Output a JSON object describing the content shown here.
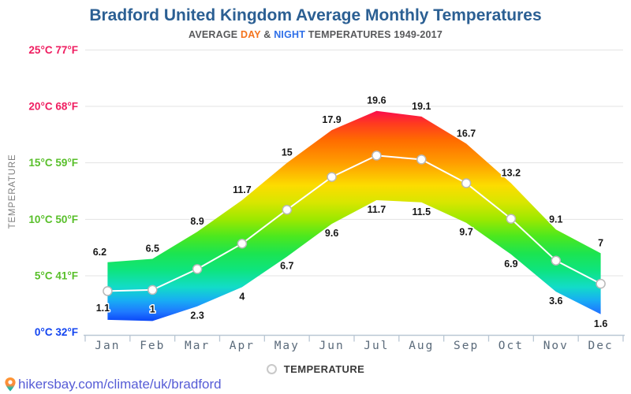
{
  "header": {
    "title": "Bradford United Kingdom Average Monthly Temperatures",
    "subtitle": {
      "prefix": "AVERAGE ",
      "day_word": "DAY",
      "separator": " & ",
      "night_word": "NIGHT",
      "suffix": " TEMPERATURES 1949-2017"
    }
  },
  "legend": {
    "label": "TEMPERATURE"
  },
  "footer": {
    "link_text": "hikersbay.com/climate/uk/bradford",
    "link_color": "#565cd6"
  },
  "chart_data": {
    "type": "area",
    "title": "Bradford United Kingdom Average Monthly Temperatures",
    "subtitle": "AVERAGE DAY & NIGHT TEMPERATURES 1949-2017",
    "categories": [
      "Jan",
      "Feb",
      "Mar",
      "Apr",
      "May",
      "Jun",
      "Jul",
      "Aug",
      "Sep",
      "Oct",
      "Nov",
      "Dec"
    ],
    "series": [
      {
        "name": "DAY",
        "values": [
          6.2,
          6.5,
          8.9,
          11.7,
          15,
          17.9,
          19.6,
          19.1,
          16.7,
          13.2,
          9.1,
          7
        ],
        "labels": [
          "6.2",
          "6.5",
          "8.9",
          "11.7",
          "15",
          "17.9",
          "19.6",
          "19.1",
          "16.7",
          "13.2",
          "9.1",
          "7"
        ]
      },
      {
        "name": "NIGHT",
        "values": [
          1.1,
          1,
          2.3,
          4,
          6.7,
          9.6,
          11.7,
          11.5,
          9.7,
          6.9,
          3.6,
          1.6
        ],
        "labels": [
          "1.1",
          "1",
          "2.3",
          "4",
          "6.7",
          "9.6",
          "11.7",
          "11.5",
          "9.7",
          "6.9",
          "3.6",
          "1.6"
        ]
      }
    ],
    "midline": {
      "name": "TEMPERATURE",
      "description": "white line with circular markers at midpoint of day and night values"
    },
    "ylabel": "TEMPERATURE",
    "ylim": [
      0,
      25
    ],
    "grid": true,
    "yticks": [
      {
        "value": 0,
        "c": "0°C",
        "f": "32°F",
        "color": "#1244f0"
      },
      {
        "value": 5,
        "c": "5°C",
        "f": "41°F",
        "color": "#58bf2a"
      },
      {
        "value": 10,
        "c": "10°C",
        "f": "50°F",
        "color": "#58bf2a"
      },
      {
        "value": 15,
        "c": "15°C",
        "f": "59°F",
        "color": "#58bf2a"
      },
      {
        "value": 20,
        "c": "20°C",
        "f": "68°F",
        "color": "#ef1d60"
      },
      {
        "value": 25,
        "c": "25°C",
        "f": "77°F",
        "color": "#ef1d60"
      }
    ],
    "color_scale": [
      {
        "temp": 25,
        "color": "#ef0a4e"
      },
      {
        "temp": 19.6,
        "color": "#fa0c4c"
      },
      {
        "temp": 18.5,
        "color": "#ff3a20"
      },
      {
        "temp": 17,
        "color": "#ff6c00"
      },
      {
        "temp": 15,
        "color": "#ff9d00"
      },
      {
        "temp": 13,
        "color": "#fcdc00"
      },
      {
        "temp": 11.5,
        "color": "#d8e600"
      },
      {
        "temp": 10,
        "color": "#9ce800"
      },
      {
        "temp": 8.5,
        "color": "#4ce81e"
      },
      {
        "temp": 7,
        "color": "#1ce450"
      },
      {
        "temp": 5.5,
        "color": "#0ee47e"
      },
      {
        "temp": 4,
        "color": "#12dcc8"
      },
      {
        "temp": 2.8,
        "color": "#18acf4"
      },
      {
        "temp": 1.8,
        "color": "#1e78ff"
      },
      {
        "temp": 1,
        "color": "#0c48f8"
      },
      {
        "temp": 0,
        "color": "#0836e6"
      }
    ]
  }
}
